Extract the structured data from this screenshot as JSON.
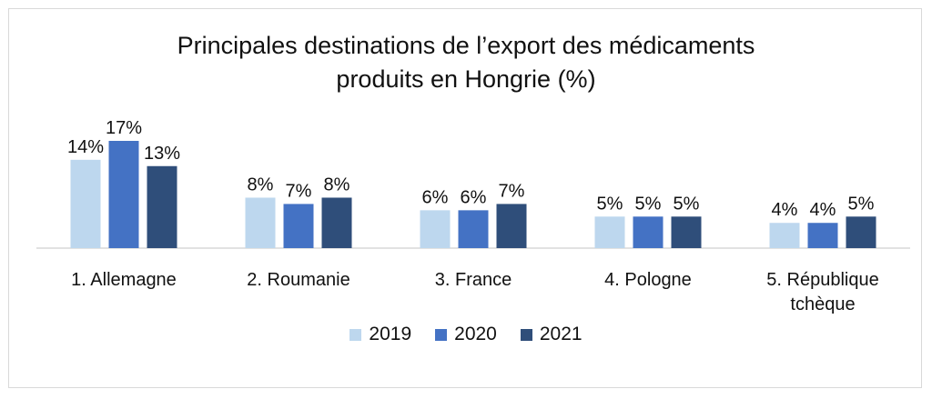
{
  "chart_data": {
    "type": "bar",
    "title": "Principales destinations de l’export des médicaments produits en Hongrie (%)",
    "title_lines": [
      "Principales destinations de l’export des médicaments",
      "produits en Hongrie (%)"
    ],
    "categories": [
      "1. Allemagne",
      "2. Roumanie",
      "3. France",
      "4. Pologne",
      "5. République tchèque"
    ],
    "category_lines": [
      [
        "1. Allemagne"
      ],
      [
        "2. Roumanie"
      ],
      [
        "3. France"
      ],
      [
        "4. Pologne"
      ],
      [
        "5. République",
        "tchèque"
      ]
    ],
    "series": [
      {
        "name": "2019",
        "color": "#bdd7ee",
        "values": [
          14,
          8,
          6,
          5,
          4
        ],
        "labels": [
          "14%",
          "8%",
          "6%",
          "5%",
          "4%"
        ]
      },
      {
        "name": "2020",
        "color": "#4472c4",
        "values": [
          17,
          7,
          6,
          5,
          4
        ],
        "labels": [
          "17%",
          "7%",
          "6%",
          "5%",
          "4%"
        ]
      },
      {
        "name": "2021",
        "color": "#2f4e7a",
        "values": [
          13,
          8,
          7,
          5,
          5
        ],
        "labels": [
          "13%",
          "8%",
          "7%",
          "5%",
          "5%"
        ]
      }
    ],
    "ylim": [
      0,
      17
    ],
    "grid": false,
    "legend_position": "bottom"
  }
}
